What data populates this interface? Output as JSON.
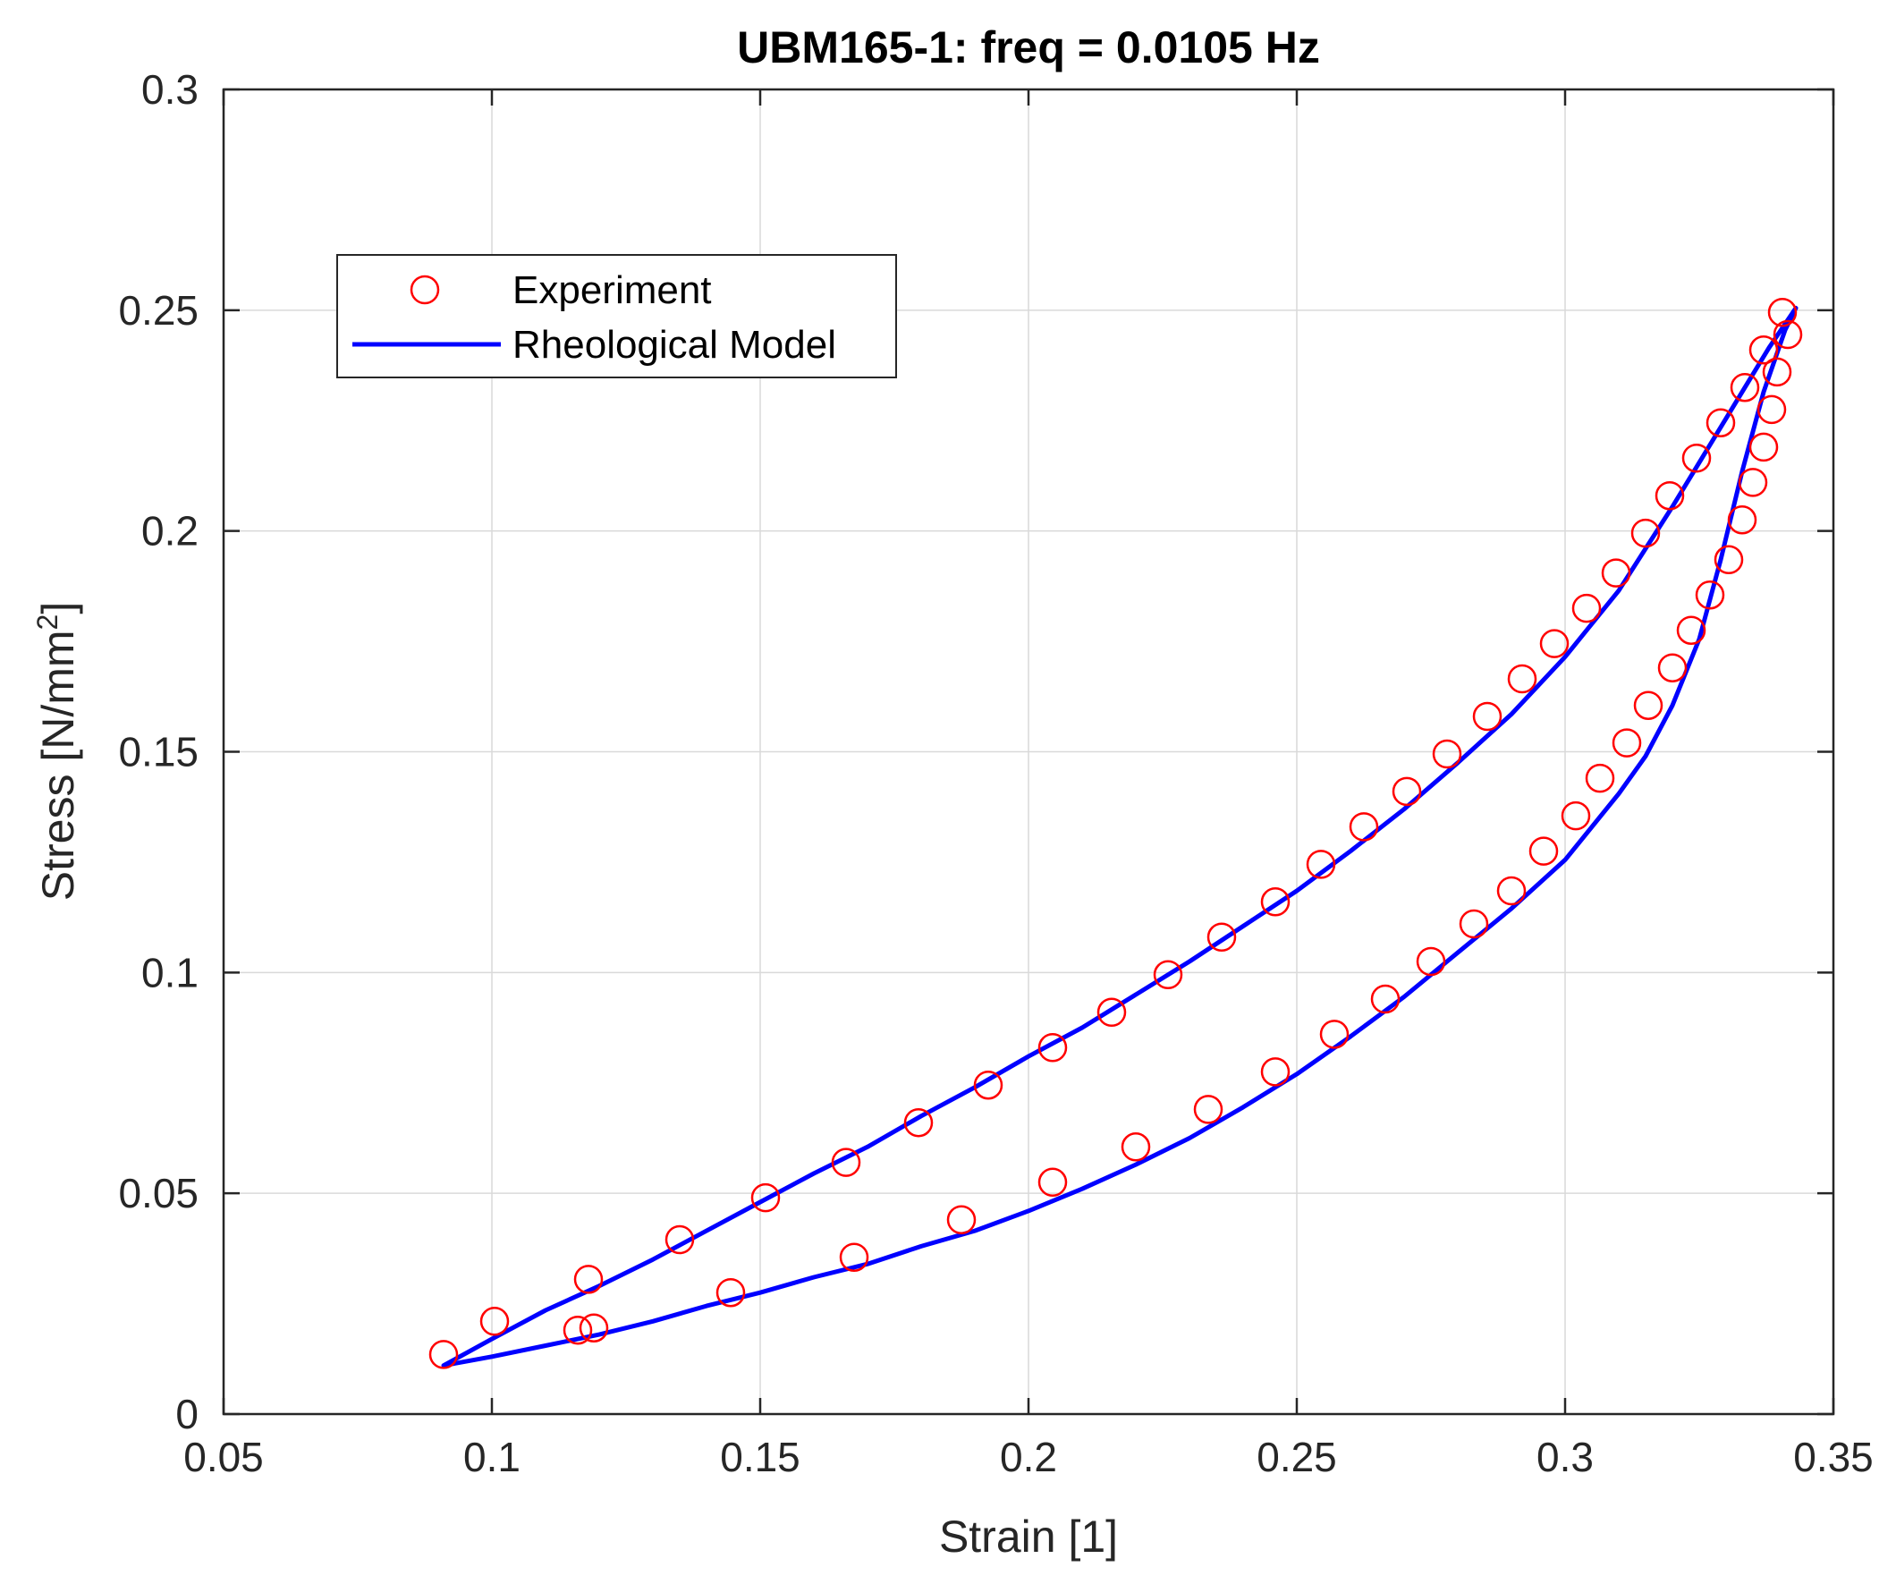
{
  "chart_data": {
    "type": "scatter",
    "title": "UBM165-1: freq = 0.0105 Hz",
    "xlabel": "Strain [1]",
    "ylabel": "Stress [N/mm",
    "ylabel_sup": "2",
    "ylabel_close": "]",
    "xlim": [
      0.05,
      0.35
    ],
    "ylim": [
      0,
      0.3
    ],
    "xticks": [
      0.05,
      0.1,
      0.15,
      0.2,
      0.25,
      0.3,
      0.35
    ],
    "xtick_labels": [
      "0.05",
      "0.1",
      "0.15",
      "0.2",
      "0.25",
      "0.3",
      "0.35"
    ],
    "yticks": [
      0,
      0.05,
      0.1,
      0.15,
      0.2,
      0.25,
      0.3
    ],
    "ytick_labels": [
      "0",
      "0.05",
      "0.1",
      "0.15",
      "0.2",
      "0.25",
      "0.3"
    ],
    "grid": true,
    "legend_position": "top-left",
    "colors": {
      "experiment": "#ff0000",
      "model": "#0000ff",
      "grid": "#d9d9d9",
      "axes": "#262626"
    },
    "legend": {
      "experiment_label": "Experiment",
      "model_label": "Rheological Model"
    },
    "experiment": {
      "name": "Experiment",
      "points": [
        [
          0.091,
          0.0135
        ],
        [
          0.1005,
          0.021
        ],
        [
          0.116,
          0.019
        ],
        [
          0.118,
          0.0305
        ],
        [
          0.119,
          0.0195
        ],
        [
          0.135,
          0.0395
        ],
        [
          0.1445,
          0.0275
        ],
        [
          0.151,
          0.049
        ],
        [
          0.166,
          0.057
        ],
        [
          0.1675,
          0.0355
        ],
        [
          0.1795,
          0.066
        ],
        [
          0.1875,
          0.044
        ],
        [
          0.1925,
          0.0745
        ],
        [
          0.2045,
          0.083
        ],
        [
          0.2045,
          0.0525
        ],
        [
          0.2155,
          0.091
        ],
        [
          0.22,
          0.0605
        ],
        [
          0.226,
          0.0995
        ],
        [
          0.2335,
          0.069
        ],
        [
          0.236,
          0.108
        ],
        [
          0.246,
          0.116
        ],
        [
          0.246,
          0.0775
        ],
        [
          0.2545,
          0.1245
        ],
        [
          0.257,
          0.086
        ],
        [
          0.2625,
          0.133
        ],
        [
          0.2665,
          0.094
        ],
        [
          0.2705,
          0.141
        ],
        [
          0.275,
          0.1025
        ],
        [
          0.278,
          0.1495
        ],
        [
          0.283,
          0.111
        ],
        [
          0.2855,
          0.158
        ],
        [
          0.29,
          0.1185
        ],
        [
          0.292,
          0.1665
        ],
        [
          0.296,
          0.1275
        ],
        [
          0.298,
          0.1745
        ],
        [
          0.302,
          0.1355
        ],
        [
          0.304,
          0.1825
        ],
        [
          0.3065,
          0.144
        ],
        [
          0.3095,
          0.1905
        ],
        [
          0.3115,
          0.152
        ],
        [
          0.315,
          0.1995
        ],
        [
          0.3155,
          0.1605
        ],
        [
          0.3195,
          0.208
        ],
        [
          0.32,
          0.169
        ],
        [
          0.3235,
          0.1775
        ],
        [
          0.3245,
          0.2165
        ],
        [
          0.327,
          0.1855
        ],
        [
          0.329,
          0.2245
        ],
        [
          0.3305,
          0.1935
        ],
        [
          0.333,
          0.2025
        ],
        [
          0.3335,
          0.2325
        ],
        [
          0.335,
          0.211
        ],
        [
          0.337,
          0.219
        ],
        [
          0.337,
          0.241
        ],
        [
          0.3385,
          0.2275
        ],
        [
          0.3395,
          0.236
        ],
        [
          0.3405,
          0.2495
        ],
        [
          0.3415,
          0.2445
        ]
      ]
    },
    "model": {
      "name": "Rheological Model",
      "points": [
        [
          0.091,
          0.011
        ],
        [
          0.1,
          0.017
        ],
        [
          0.11,
          0.0235
        ],
        [
          0.12,
          0.029
        ],
        [
          0.13,
          0.035
        ],
        [
          0.14,
          0.0415
        ],
        [
          0.15,
          0.048
        ],
        [
          0.16,
          0.0545
        ],
        [
          0.17,
          0.0605
        ],
        [
          0.18,
          0.0675
        ],
        [
          0.19,
          0.074
        ],
        [
          0.2,
          0.081
        ],
        [
          0.21,
          0.0875
        ],
        [
          0.22,
          0.095
        ],
        [
          0.23,
          0.1025
        ],
        [
          0.24,
          0.1105
        ],
        [
          0.25,
          0.1185
        ],
        [
          0.26,
          0.1275
        ],
        [
          0.27,
          0.137
        ],
        [
          0.28,
          0.1475
        ],
        [
          0.29,
          0.1585
        ],
        [
          0.3,
          0.1715
        ],
        [
          0.31,
          0.1865
        ],
        [
          0.32,
          0.2055
        ],
        [
          0.33,
          0.2255
        ],
        [
          0.338,
          0.2415
        ],
        [
          0.343,
          0.2505
        ],
        [
          0.341,
          0.2455
        ],
        [
          0.337,
          0.2315
        ],
        [
          0.333,
          0.2135
        ],
        [
          0.329,
          0.1935
        ],
        [
          0.325,
          0.1755
        ],
        [
          0.32,
          0.1605
        ],
        [
          0.315,
          0.149
        ],
        [
          0.31,
          0.1405
        ],
        [
          0.305,
          0.133
        ],
        [
          0.3,
          0.1255
        ],
        [
          0.29,
          0.1145
        ],
        [
          0.28,
          0.1045
        ],
        [
          0.27,
          0.0945
        ],
        [
          0.26,
          0.0855
        ],
        [
          0.25,
          0.077
        ],
        [
          0.24,
          0.0695
        ],
        [
          0.23,
          0.0625
        ],
        [
          0.22,
          0.0565
        ],
        [
          0.21,
          0.051
        ],
        [
          0.2,
          0.046
        ],
        [
          0.19,
          0.0415
        ],
        [
          0.18,
          0.038
        ],
        [
          0.17,
          0.034
        ],
        [
          0.16,
          0.031
        ],
        [
          0.15,
          0.0275
        ],
        [
          0.14,
          0.0245
        ],
        [
          0.13,
          0.021
        ],
        [
          0.12,
          0.018
        ],
        [
          0.11,
          0.0155
        ],
        [
          0.1,
          0.013
        ],
        [
          0.091,
          0.011
        ]
      ]
    }
  }
}
